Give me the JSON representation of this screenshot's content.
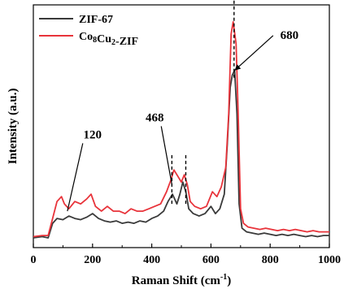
{
  "chart_data": {
    "type": "line",
    "title": "",
    "xlabel": "Raman Shift (cm",
    "xlabel_sup": "-1",
    "xlabel_tail": ")",
    "ylabel": "Intensity (a.u.)",
    "xlim": [
      0,
      1000
    ],
    "ylim": [
      0,
      1
    ],
    "xticks": [
      "0",
      "200",
      "400",
      "600",
      "800",
      "1000"
    ],
    "grid": false,
    "legend_position": "top-left",
    "series": [
      {
        "name": "ZIF-67",
        "color": "#3a3a3a",
        "x": [
          0,
          30,
          50,
          65,
          80,
          100,
          120,
          140,
          160,
          180,
          200,
          220,
          240,
          260,
          280,
          300,
          320,
          340,
          360,
          380,
          400,
          420,
          440,
          455,
          470,
          485,
          495,
          505,
          515,
          525,
          540,
          560,
          580,
          600,
          615,
          630,
          645,
          655,
          665,
          672,
          680,
          688,
          695,
          705,
          720,
          740,
          760,
          780,
          800,
          820,
          840,
          860,
          880,
          900,
          920,
          940,
          960,
          980,
          1000
        ],
        "y": [
          0.04,
          0.045,
          0.04,
          0.1,
          0.12,
          0.115,
          0.13,
          0.12,
          0.115,
          0.125,
          0.14,
          0.12,
          0.11,
          0.105,
          0.11,
          0.1,
          0.105,
          0.1,
          0.11,
          0.105,
          0.12,
          0.13,
          0.15,
          0.19,
          0.22,
          0.18,
          0.22,
          0.27,
          0.23,
          0.16,
          0.14,
          0.13,
          0.14,
          0.17,
          0.14,
          0.16,
          0.22,
          0.42,
          0.66,
          0.71,
          0.73,
          0.55,
          0.18,
          0.08,
          0.065,
          0.06,
          0.055,
          0.06,
          0.055,
          0.05,
          0.055,
          0.05,
          0.055,
          0.05,
          0.045,
          0.05,
          0.045,
          0.05,
          0.05
        ]
      },
      {
        "name": "Co8Cu2-ZIF",
        "name_parts": [
          "Co",
          "8",
          "Cu",
          "2",
          "-ZIF"
        ],
        "color": "#e8333a",
        "x": [
          0,
          30,
          50,
          65,
          80,
          95,
          105,
          120,
          140,
          160,
          180,
          195,
          210,
          230,
          250,
          270,
          290,
          310,
          330,
          350,
          370,
          390,
          410,
          430,
          450,
          465,
          475,
          490,
          500,
          510,
          520,
          530,
          545,
          565,
          585,
          605,
          620,
          635,
          650,
          660,
          668,
          675,
          685,
          692,
          700,
          710,
          725,
          745,
          765,
          785,
          805,
          825,
          845,
          865,
          885,
          905,
          925,
          945,
          965,
          985,
          1000
        ],
        "y": [
          0.045,
          0.05,
          0.05,
          0.12,
          0.19,
          0.21,
          0.18,
          0.16,
          0.19,
          0.18,
          0.2,
          0.22,
          0.17,
          0.15,
          0.17,
          0.15,
          0.15,
          0.14,
          0.16,
          0.15,
          0.15,
          0.16,
          0.17,
          0.18,
          0.23,
          0.28,
          0.32,
          0.29,
          0.27,
          0.3,
          0.26,
          0.19,
          0.17,
          0.16,
          0.17,
          0.23,
          0.21,
          0.25,
          0.33,
          0.55,
          0.88,
          0.93,
          0.84,
          0.55,
          0.16,
          0.1,
          0.085,
          0.08,
          0.075,
          0.08,
          0.075,
          0.07,
          0.075,
          0.07,
          0.075,
          0.07,
          0.065,
          0.07,
          0.065,
          0.065,
          0.065
        ]
      }
    ],
    "annotations": [
      {
        "label": "120",
        "point_x": 115,
        "point_y": 0.15,
        "text_x": 200,
        "text_y": 0.45
      },
      {
        "label": "468",
        "point_x": 468,
        "point_y": 0.26,
        "text_x": 410,
        "text_y": 0.52
      },
      {
        "label": "680",
        "point_x": 680,
        "point_y": 0.73,
        "text_x": 865,
        "text_y": 0.86
      }
    ],
    "dashed_lines": [
      {
        "x": 468,
        "y_from": 0.18,
        "y_to": 0.39
      },
      {
        "x": 515,
        "y_from": 0.18,
        "y_to": 0.39
      },
      {
        "x": 678,
        "y_from": 0.7,
        "y_to": 1.02
      }
    ]
  }
}
